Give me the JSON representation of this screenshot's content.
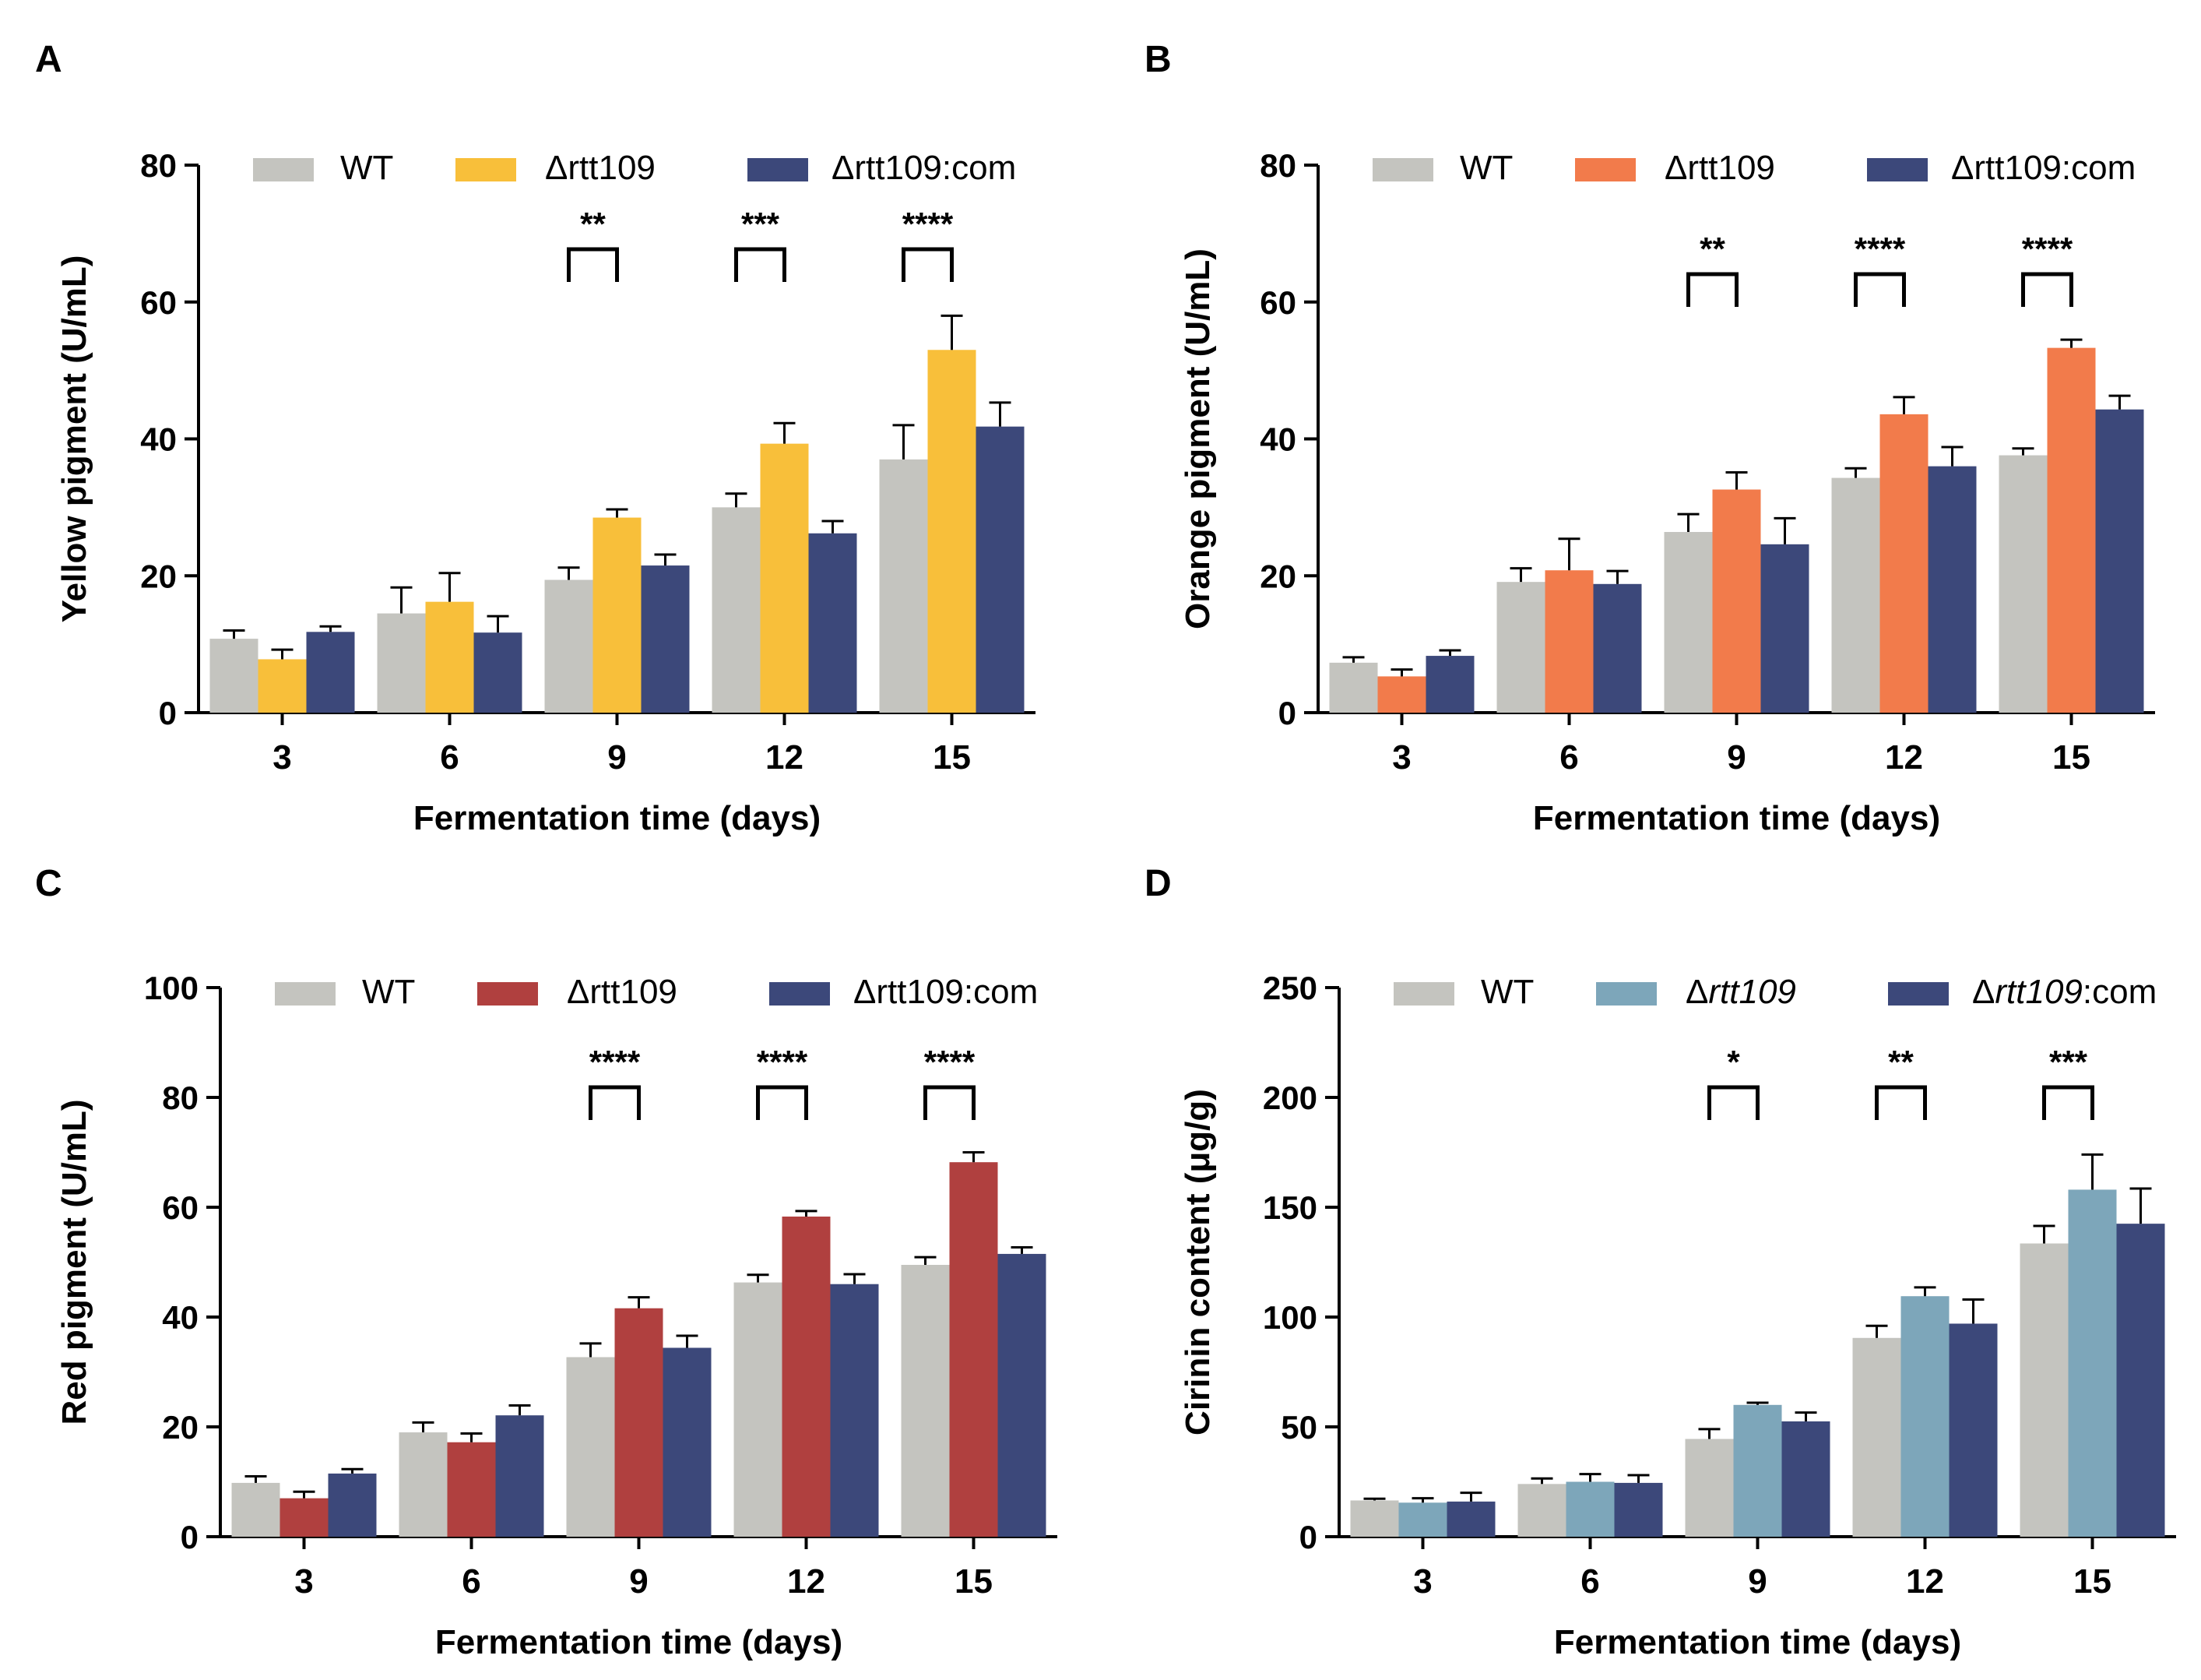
{
  "chart_data": [
    {
      "panel": "A",
      "type": "bar",
      "categories": [
        "3",
        "6",
        "9",
        "12",
        "15"
      ],
      "xlabel": "Fermentation time (days)",
      "ylabel": "Yellow pigment (U/mL)",
      "ylim": [
        0,
        80
      ],
      "yticks": [
        "0",
        "20",
        "40",
        "60",
        "80"
      ],
      "series": [
        {
          "name": "WT",
          "color": "#c4c4bf",
          "values": [
            10.8,
            14.5,
            19.4,
            30.0,
            37.0
          ],
          "errors": [
            1.2,
            3.8,
            1.8,
            2.0,
            5.0
          ]
        },
        {
          "name": "Δrtt109",
          "color": "#f8bf3a",
          "values": [
            7.8,
            16.2,
            28.5,
            39.3,
            53.0
          ],
          "errors": [
            1.4,
            4.2,
            1.2,
            3.0,
            5.0
          ]
        },
        {
          "name": "Δrtt109:com",
          "color": "#3c487a",
          "values": [
            11.8,
            11.7,
            21.5,
            26.2,
            41.8
          ],
          "errors": [
            0.8,
            2.4,
            1.6,
            1.8,
            3.5
          ]
        }
      ],
      "legend_italic": false,
      "significance": [
        {
          "category": "9",
          "label": "**"
        },
        {
          "category": "12",
          "label": "***"
        },
        {
          "category": "15",
          "label": "****"
        }
      ]
    },
    {
      "panel": "B",
      "type": "bar",
      "categories": [
        "3",
        "6",
        "9",
        "12",
        "15"
      ],
      "xlabel": "Fermentation time (days)",
      "ylabel": "Orange pigment (U/mL)",
      "ylim": [
        0,
        80
      ],
      "yticks": [
        "0",
        "20",
        "40",
        "60",
        "80"
      ],
      "series": [
        {
          "name": "WT",
          "color": "#c4c4bf",
          "values": [
            7.3,
            19.1,
            26.4,
            34.3,
            37.6
          ],
          "errors": [
            0.8,
            2.0,
            2.6,
            1.4,
            1.0
          ]
        },
        {
          "name": "Δrtt109",
          "color": "#f27b4b",
          "values": [
            5.3,
            20.8,
            32.6,
            43.6,
            53.3
          ],
          "errors": [
            1.0,
            4.6,
            2.5,
            2.5,
            1.2
          ]
        },
        {
          "name": "Δrtt109:com",
          "color": "#3c487a",
          "values": [
            8.3,
            18.8,
            24.6,
            36.0,
            44.3
          ],
          "errors": [
            0.8,
            1.9,
            3.8,
            2.8,
            2.0
          ]
        }
      ],
      "legend_italic": false,
      "significance": [
        {
          "category": "9",
          "label": "**"
        },
        {
          "category": "12",
          "label": "****"
        },
        {
          "category": "15",
          "label": "****"
        }
      ]
    },
    {
      "panel": "C",
      "type": "bar",
      "categories": [
        "3",
        "6",
        "9",
        "12",
        "15"
      ],
      "xlabel": "Fermentation time (days)",
      "ylabel": "Red pigment (U/mL)",
      "ylim": [
        0,
        100
      ],
      "yticks": [
        "0",
        "20",
        "40",
        "60",
        "80",
        "100"
      ],
      "series": [
        {
          "name": "WT",
          "color": "#c4c4bf",
          "values": [
            9.8,
            19.0,
            32.7,
            46.3,
            49.5
          ],
          "errors": [
            1.2,
            1.8,
            2.5,
            1.4,
            1.4
          ]
        },
        {
          "name": "Δrtt109",
          "color": "#b0403f",
          "values": [
            7.0,
            17.2,
            41.6,
            58.3,
            68.2
          ],
          "errors": [
            1.2,
            1.6,
            2.0,
            1.0,
            1.8
          ]
        },
        {
          "name": "Δrtt109:com",
          "color": "#3c487a",
          "values": [
            11.5,
            22.1,
            34.4,
            46.0,
            51.5
          ],
          "errors": [
            0.8,
            1.8,
            2.2,
            1.8,
            1.2
          ]
        }
      ],
      "legend_italic": false,
      "significance": [
        {
          "category": "9",
          "label": "****"
        },
        {
          "category": "12",
          "label": "****"
        },
        {
          "category": "15",
          "label": "****"
        }
      ]
    },
    {
      "panel": "D",
      "type": "bar",
      "categories": [
        "3",
        "6",
        "9",
        "12",
        "15"
      ],
      "xlabel": "Fermentation time (days)",
      "ylabel": "Cirinin content (μg/g)",
      "ylim": [
        0,
        250
      ],
      "yticks": [
        "0",
        "50",
        "100",
        "150",
        "200",
        "250"
      ],
      "series": [
        {
          "name": "WT",
          "color": "#c4c4bf",
          "values": [
            16.5,
            24.0,
            44.5,
            90.5,
            133.5
          ],
          "errors": [
            0.8,
            2.5,
            4.5,
            5.5,
            8.0
          ]
        },
        {
          "name": "Δrtt109",
          "color": "#7da6ba",
          "values": [
            15.5,
            25.0,
            60.0,
            109.5,
            158.0
          ],
          "errors": [
            2.0,
            3.5,
            1.0,
            4.0,
            16.0
          ]
        },
        {
          "name": "Δrtt109:com",
          "color": "#3c487a",
          "values": [
            16.0,
            24.5,
            52.5,
            97.0,
            142.5
          ],
          "errors": [
            4.0,
            3.5,
            4.0,
            11.0,
            16.0
          ]
        }
      ],
      "legend_italic": true,
      "significance": [
        {
          "category": "9",
          "label": "*"
        },
        {
          "category": "12",
          "label": "**"
        },
        {
          "category": "15",
          "label": "***"
        }
      ]
    }
  ]
}
